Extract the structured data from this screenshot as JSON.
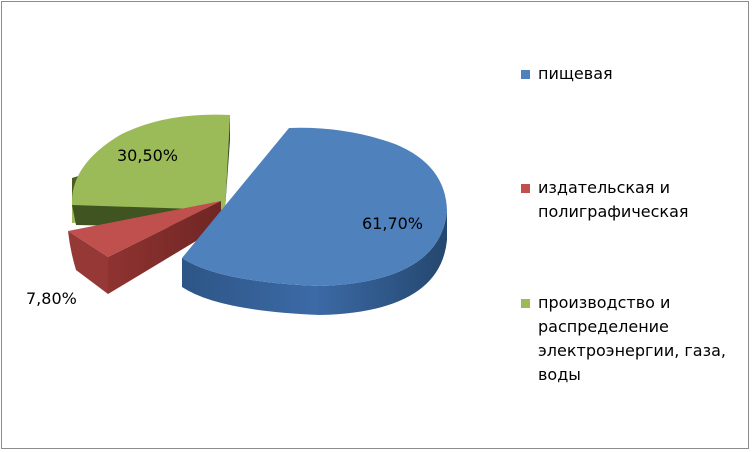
{
  "chart_data": {
    "type": "pie",
    "style": "3d-exploded",
    "title": "",
    "slices": [
      {
        "label": "пищевая",
        "value": 61.7,
        "display": "61,70%",
        "color": "#4f81bd"
      },
      {
        "label": "издательская и полиграфическая",
        "value": 7.8,
        "display": "7,80%",
        "color": "#c0504d"
      },
      {
        "label": "производство и распределение электроэнергии, газа, воды",
        "value": 30.5,
        "display": "30,50%",
        "color": "#9bbb59"
      }
    ],
    "legend_position": "right"
  },
  "legend": {
    "items": [
      {
        "label": "пищевая",
        "color": "#4f81bd"
      },
      {
        "label": "издательская и полиграфическая",
        "color": "#c0504d"
      },
      {
        "label": "производство и распределение электроэнергии, газа, воды",
        "color": "#9bbb59"
      }
    ]
  }
}
